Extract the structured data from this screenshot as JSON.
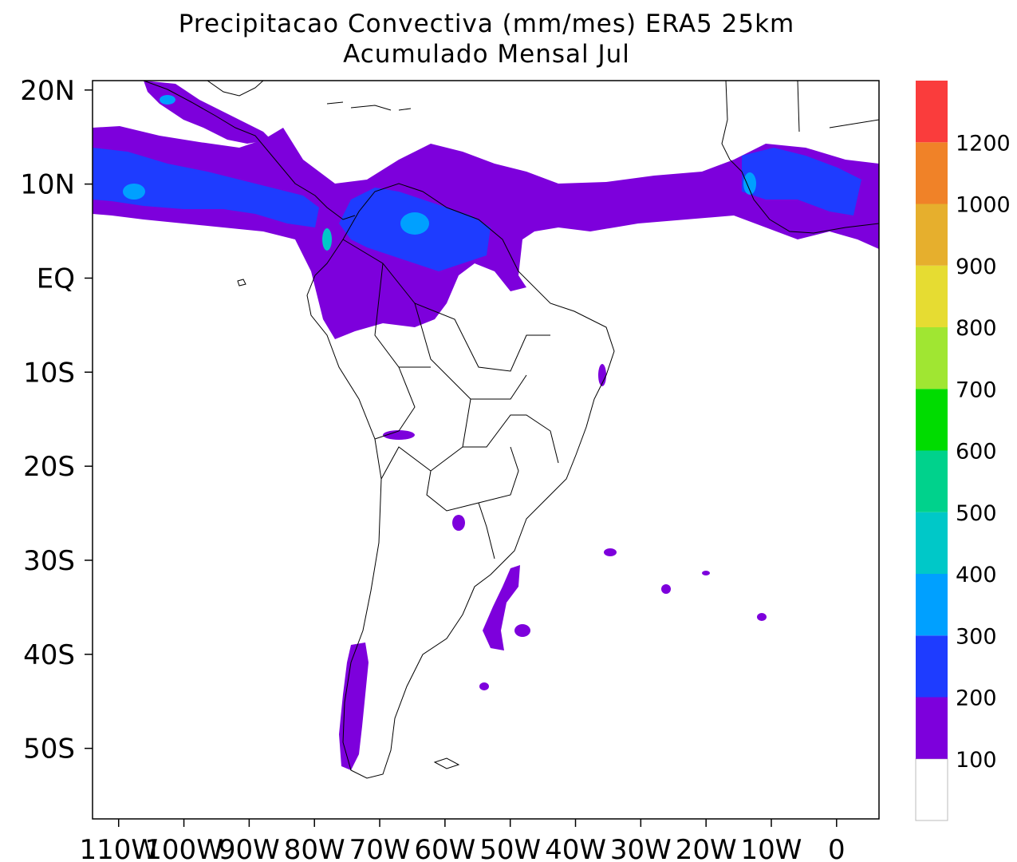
{
  "title": {
    "line1": "Precipitacao Convectiva (mm/mes) ERA5  25km",
    "line2": "Acumulado Mensal Jul"
  },
  "map": {
    "lon_range": [
      -114,
      6.5
    ],
    "lat_range": [
      -57.5,
      21
    ],
    "lat_ticks": [
      {
        "lat": 20,
        "label": "20N"
      },
      {
        "lat": 10,
        "label": "10N"
      },
      {
        "lat": 0,
        "label": "EQ"
      },
      {
        "lat": -10,
        "label": "10S"
      },
      {
        "lat": -20,
        "label": "20S"
      },
      {
        "lat": -30,
        "label": "30S"
      },
      {
        "lat": -40,
        "label": "40S"
      },
      {
        "lat": -50,
        "label": "50S"
      }
    ],
    "lon_ticks": [
      {
        "lon": -110,
        "label": "110W"
      },
      {
        "lon": -100,
        "label": "100W"
      },
      {
        "lon": -90,
        "label": "90W"
      },
      {
        "lon": -80,
        "label": "80W"
      },
      {
        "lon": -70,
        "label": "70W"
      },
      {
        "lon": -60,
        "label": "60W"
      },
      {
        "lon": -50,
        "label": "50W"
      },
      {
        "lon": -40,
        "label": "40W"
      },
      {
        "lon": -30,
        "label": "30W"
      },
      {
        "lon": -20,
        "label": "20W"
      },
      {
        "lon": -10,
        "label": "10W"
      },
      {
        "lon": 0,
        "label": "0"
      }
    ]
  },
  "colorbar": {
    "levels": [
      {
        "color": "#ffffff",
        "label": "100"
      },
      {
        "color": "#7d00dc",
        "label": "200"
      },
      {
        "color": "#1e3cff",
        "label": "300"
      },
      {
        "color": "#00a0ff",
        "label": "400"
      },
      {
        "color": "#00c8c8",
        "label": "500"
      },
      {
        "color": "#00d28c",
        "label": "600"
      },
      {
        "color": "#00dc00",
        "label": "700"
      },
      {
        "color": "#a0e632",
        "label": "800"
      },
      {
        "color": "#e6dc32",
        "label": "900"
      },
      {
        "color": "#e6af2d",
        "label": "1000"
      },
      {
        "color": "#f08228",
        "label": "1200"
      },
      {
        "color": "#fa3c3c",
        "label": ""
      }
    ]
  }
}
